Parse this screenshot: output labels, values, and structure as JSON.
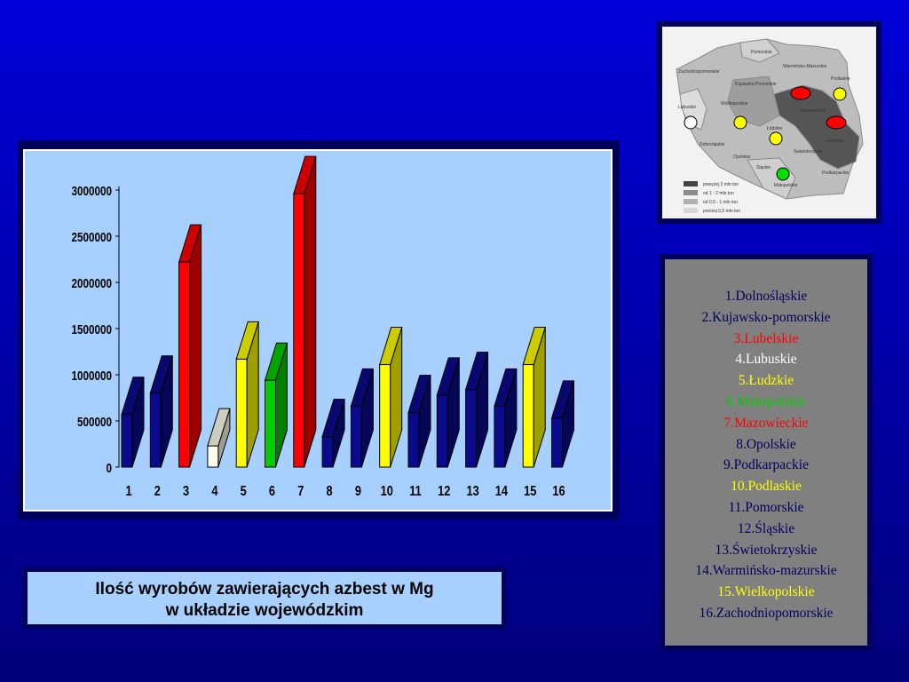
{
  "chart_data": {
    "type": "bar",
    "categories": [
      "1",
      "2",
      "3",
      "4",
      "5",
      "6",
      "7",
      "8",
      "9",
      "10",
      "11",
      "12",
      "13",
      "14",
      "15",
      "16"
    ],
    "values": [
      570000,
      800000,
      2220000,
      230000,
      1170000,
      940000,
      2960000,
      330000,
      660000,
      1110000,
      590000,
      780000,
      840000,
      660000,
      1110000,
      530000
    ],
    "colors": [
      "#0a0a8c",
      "#0a0a8c",
      "#ff0000",
      "#fffff0",
      "#ffff00",
      "#00cc00",
      "#ff0000",
      "#0a0a8c",
      "#0a0a8c",
      "#ffff00",
      "#0a0a8c",
      "#0a0a8c",
      "#0a0a8c",
      "#0a0a8c",
      "#ffff00",
      "#0a0a8c"
    ],
    "y_ticks": [
      "0",
      "500000",
      "1000000",
      "1500000",
      "2000000",
      "2500000",
      "3000000"
    ],
    "ylim": [
      0,
      3000000
    ],
    "grid": false,
    "title": "",
    "xlabel": "",
    "ylabel": ""
  },
  "legend": [
    {
      "text": "1.Dolnośląskie",
      "color": "#000060"
    },
    {
      "text": "2.Kujawsko-pomorskie",
      "color": "#000060"
    },
    {
      "text": "3.Lubelskie",
      "color": "#ff0000"
    },
    {
      "text": "4.Lubuskie",
      "color": "#ffffff"
    },
    {
      "text": "5.Łudzkie",
      "color": "#ffff00"
    },
    {
      "text": "6.Małopolskie",
      "color": "#00cc00"
    },
    {
      "text": "7.Mazowieckie",
      "color": "#ff0000"
    },
    {
      "text": "8.Opolskie",
      "color": "#000060"
    },
    {
      "text": "9.Podkarpackie",
      "color": "#000060"
    },
    {
      "text": "10.Podlaskie",
      "color": "#ffff00"
    },
    {
      "text": "11.Pomorskie",
      "color": "#000060"
    },
    {
      "text": "12.Śląskie",
      "color": "#000060"
    },
    {
      "text": "13.Świetokrzyskie",
      "color": "#000060"
    },
    {
      "text": "14.Warmińsko-mazurskie",
      "color": "#000060"
    },
    {
      "text": "15.Wielkopolskie",
      "color": "#ffff00"
    },
    {
      "text": "16.Zachodniopomorskie",
      "color": "#000060"
    }
  ],
  "caption": {
    "line1": "Ilość wyrobów zawierających azbest w Mg",
    "line2": "w układzie wojewódzkim"
  },
  "map": {
    "regions": [
      "Pomorskie",
      "Warmińsko-Mazurskie",
      "Zachodniopomorskie",
      "Podlaskie",
      "Kujawsko-Pomorskie",
      "Lubuskie",
      "Wielkopolskie",
      "Mazowieckie",
      "Łódzkie",
      "Lubelskie",
      "Dolnośląskie",
      "Opolskie",
      "Świętokrzyskie",
      "Śląskie",
      "Małopolskie",
      "Podkarpackie"
    ],
    "legend": [
      "powyżej 2 mln ton",
      "od 1 - 2 mln ton",
      "od 0,5 - 1 mln ton",
      "poniżej 0,5 mln ton"
    ],
    "marker_colors": [
      "#ff0000",
      "#ffff00",
      "#ffffff",
      "#00dd00"
    ]
  }
}
